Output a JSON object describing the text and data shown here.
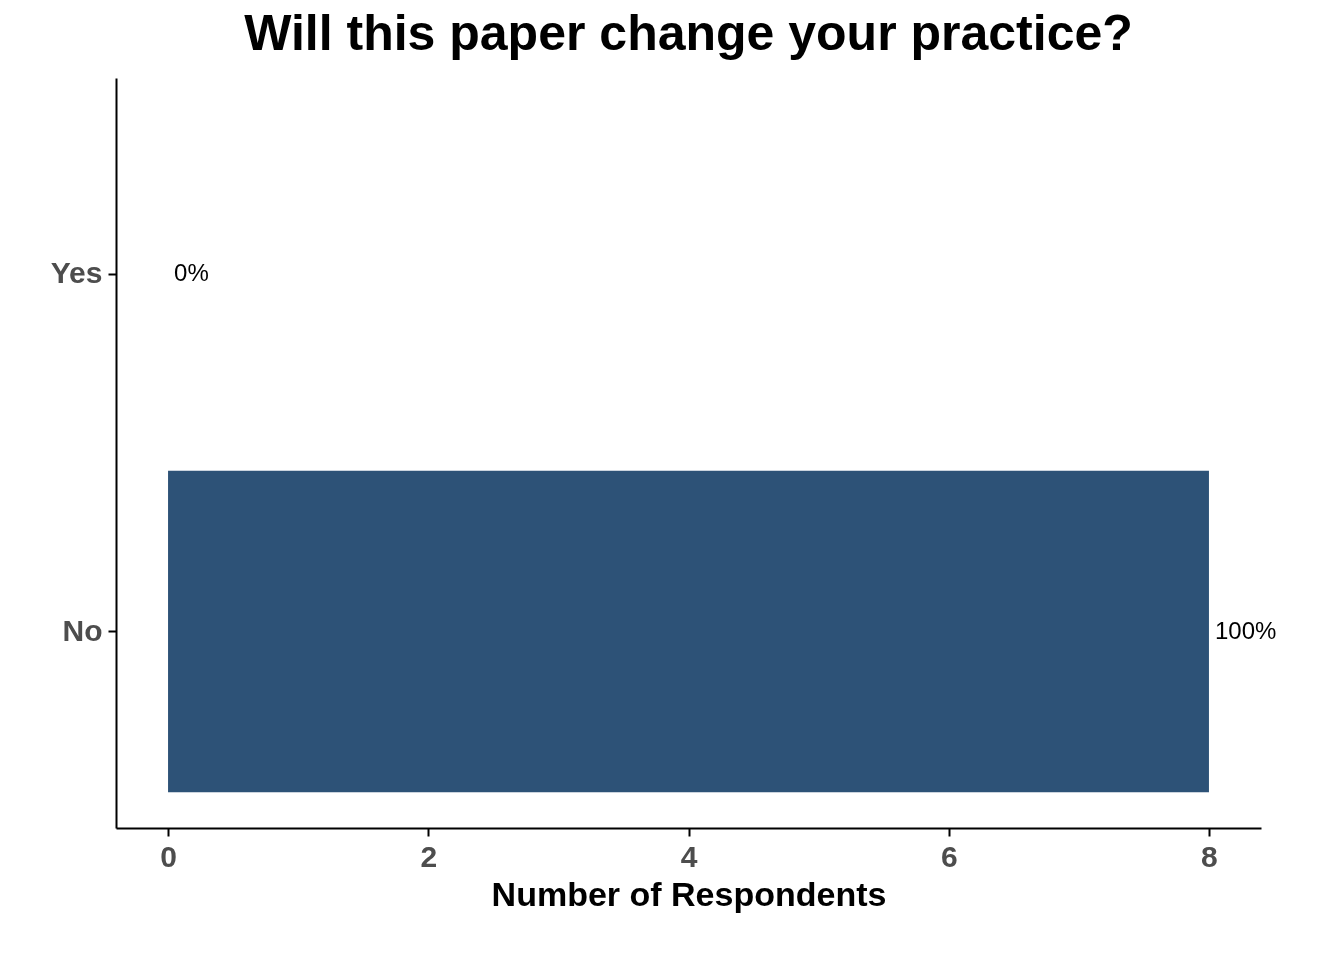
{
  "chart_data": {
    "type": "bar",
    "orientation": "horizontal",
    "title": "Will this paper change your practice?",
    "xlabel": "Number of Respondents",
    "categories": [
      "Yes",
      "No"
    ],
    "values": [
      0,
      8
    ],
    "color": "#2d5277",
    "annotations": [
      {
        "text": "0%",
        "x": 0,
        "y": "Yes"
      },
      {
        "text": "100%",
        "x": 8,
        "y": "No"
      }
    ],
    "xlim": [
      -0.4,
      8.4
    ],
    "xticks": [
      0,
      2,
      4,
      6,
      8
    ],
    "grid": false
  }
}
